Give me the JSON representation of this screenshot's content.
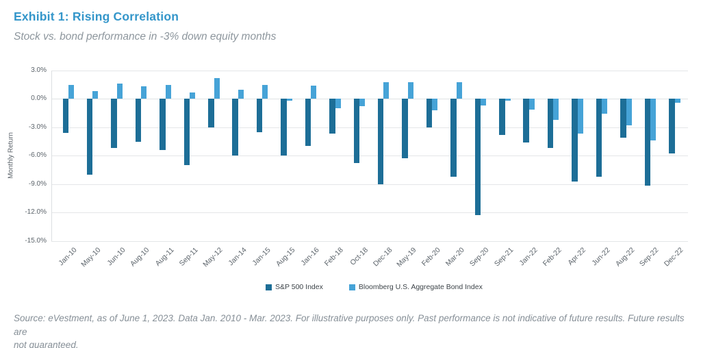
{
  "header": {
    "title": "Exhibit 1: Rising Correlation",
    "subtitle": "Stock vs. bond performance in -3% down equity months"
  },
  "chart_data": {
    "type": "bar",
    "title": "Exhibit 1: Rising Correlation",
    "subtitle": "Stock vs. bond performance in -3% down equity months",
    "ylabel": "Monthly Return",
    "xlabel": "",
    "ylim": [
      -15,
      3
    ],
    "grid": true,
    "legend_position": "bottom",
    "ytick_values": [
      3,
      0,
      -3,
      -6,
      -9,
      -12,
      -15
    ],
    "ytick_labels": [
      "3.0%",
      "0.0%",
      "-3.0%",
      "-6.0%",
      "-9.0%",
      "-12.0%",
      "-15.0%"
    ],
    "categories": [
      "Jan-10",
      "May-10",
      "Jun-10",
      "Aug-10",
      "Aug-11",
      "Sep-11",
      "May-12",
      "Jan-14",
      "Jan-15",
      "Aug-15",
      "Jan-16",
      "Feb-18",
      "Oct-18",
      "Dec-18",
      "May-19",
      "Feb-20",
      "Mar-20",
      "Sep-20",
      "Sep-21",
      "Jan-22",
      "Feb-22",
      "Apr-22",
      "Jun-22",
      "Aug-22",
      "Sep-22",
      "Dec-22"
    ],
    "series": [
      {
        "name": "S&P 500 Index",
        "color": "#1d6e97",
        "values": [
          -3.6,
          -8.0,
          -5.2,
          -4.5,
          -5.4,
          -7.0,
          -3.0,
          -6.0,
          -3.5,
          -6.0,
          -5.0,
          -3.7,
          -6.8,
          -9.0,
          -6.3,
          -3.0,
          -8.2,
          -12.3,
          -3.8,
          -4.6,
          -5.2,
          -8.7,
          -8.2,
          -4.1,
          -9.2,
          -5.8
        ]
      },
      {
        "name": "Bloomberg U.S. Aggregate Bond Index",
        "color": "#46a3d7",
        "values": [
          1.5,
          0.8,
          1.6,
          1.3,
          1.5,
          0.7,
          2.2,
          1.0,
          1.5,
          -0.2,
          1.4,
          -1.0,
          -0.8,
          1.8,
          1.8,
          -1.2,
          1.8,
          -0.7,
          -0.2,
          -1.1,
          -2.2,
          -3.7,
          -1.6,
          -2.8,
          -4.4,
          -0.4
        ]
      }
    ]
  },
  "footer": {
    "line1": "Source: eVestment, as of June 1, 2023. Data Jan. 2010 - Mar. 2023. For illustrative purposes only. Past performance is not indicative of future results. Future results are",
    "line2": "not guaranteed."
  },
  "colors": {
    "title": "#3496ca",
    "subtitle": "#8d969d",
    "axis_text": "#5c646b",
    "gridline": "#e4e6e8",
    "sp500_bar": "#1d6e97",
    "agg_bond_bar": "#46a3d7",
    "footer_text": "#868f97",
    "background": "#ffffff"
  }
}
